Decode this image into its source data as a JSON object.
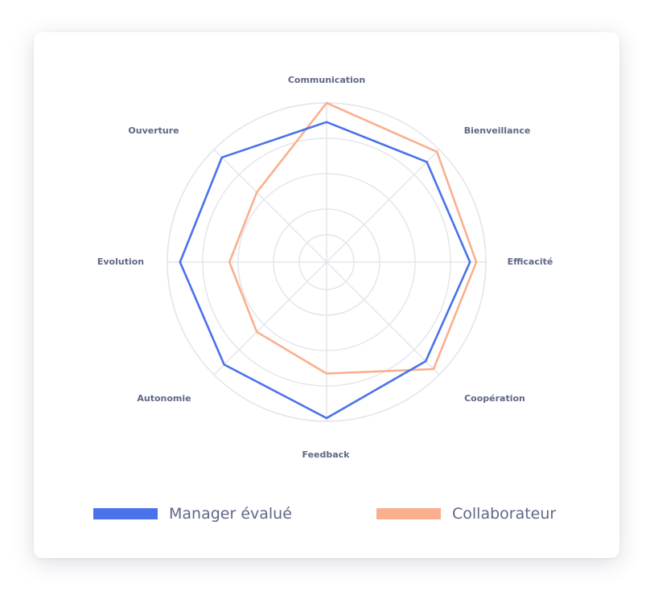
{
  "chart_data": {
    "type": "radar",
    "axes": [
      "Communication",
      "Bienveillance",
      "Efficacité",
      "Coopération",
      "Feedback",
      "Autonomie",
      "Evolution",
      "Ouverture"
    ],
    "rmax": 10,
    "rings": 5,
    "series": [
      {
        "name": "Manager évalué",
        "color": "#4a72ea",
        "values": [
          8.8,
          8.9,
          9.0,
          8.8,
          9.8,
          9.1,
          9.2,
          9.3
        ]
      },
      {
        "name": "Collaborateur",
        "color": "#f9b08f",
        "values": [
          10.0,
          9.8,
          9.4,
          9.5,
          7.0,
          6.2,
          6.1,
          6.2
        ]
      }
    ]
  }
}
